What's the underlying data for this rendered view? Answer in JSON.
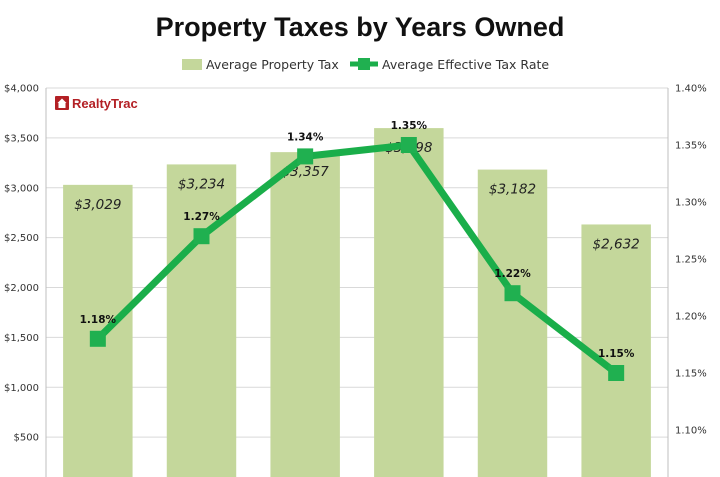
{
  "chart_data": {
    "type": "bar",
    "title": "Property Taxes by Years Owned",
    "categories": [
      "",
      "",
      "",
      "",
      "",
      ""
    ],
    "series": [
      {
        "name": "Average Property Tax",
        "type": "bar",
        "axis": "left",
        "values": [
          3029,
          3234,
          3357,
          3598,
          3182,
          2632
        ],
        "labels": [
          "$3,029",
          "$3,234",
          "$3,357",
          "$3,598",
          "$3,182",
          "$2,632"
        ]
      },
      {
        "name": "Average Effective Tax Rate",
        "type": "line",
        "axis": "right",
        "values": [
          1.18,
          1.27,
          1.34,
          1.35,
          1.22,
          1.15
        ],
        "labels": [
          "1.18%",
          "1.27%",
          "1.34%",
          "1.35%",
          "1.22%",
          "1.15%"
        ]
      }
    ],
    "y_left": {
      "range": [
        0,
        4000
      ],
      "ticks": [
        500,
        1000,
        1500,
        2000,
        2500,
        3000,
        3500,
        4000
      ],
      "tick_labels": [
        "$500",
        "$1,000",
        "$1,500",
        "$2,000",
        "$2,500",
        "$3,000",
        "$3,500",
        "$4,000"
      ]
    },
    "y_right": {
      "range": [
        1.05,
        1.4
      ],
      "ticks": [
        1.1,
        1.15,
        1.2,
        1.25,
        1.3,
        1.35,
        1.4
      ],
      "tick_labels": [
        "1.10%",
        "1.15%",
        "1.20%",
        "1.25%",
        "1.30%",
        "1.35%",
        "1.40%"
      ]
    },
    "grid": true,
    "legend": "top-center",
    "xlabel": "",
    "ylabel": ""
  },
  "logo": {
    "text": "RealtyTrac"
  },
  "colors": {
    "bar": "#c4d79b",
    "line": "#1aae4a",
    "marker": "#20b050",
    "grid": "#d9d9d9",
    "axis": "#bfbfbf",
    "logo": "#b32025"
  }
}
